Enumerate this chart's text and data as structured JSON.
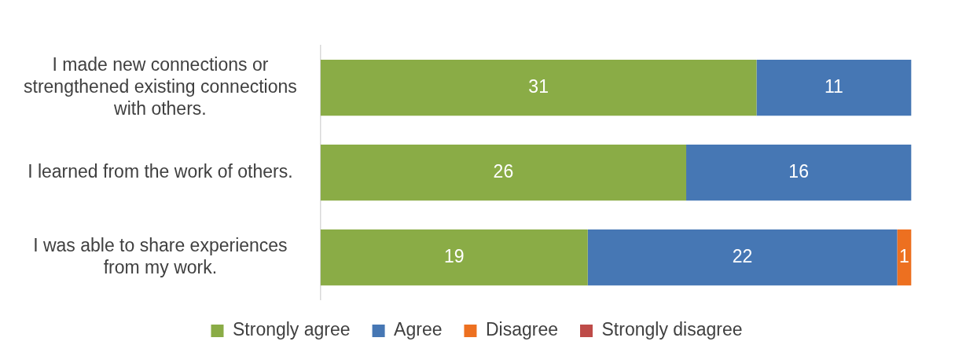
{
  "chart_data": {
    "type": "bar",
    "orientation": "horizontal",
    "stacked": true,
    "tick_labels": "y",
    "legend": "bottom",
    "categories": [
      "I made new connections or strengthened existing connections with others.",
      "I learned from the work of others.",
      "I was able to share experiences from my work."
    ],
    "series": [
      {
        "name": "Strongly agree",
        "color": "#8aac46",
        "values": [
          31,
          26,
          19
        ],
        "value_labels": [
          "31",
          "26",
          "19"
        ]
      },
      {
        "name": "Agree",
        "color": "#4677b4",
        "values": [
          11,
          16,
          22
        ],
        "value_labels": [
          "11",
          "16",
          "22"
        ]
      },
      {
        "name": "Disagree",
        "color": "#ed7020",
        "values": [
          0,
          0,
          1
        ],
        "value_labels": [
          null,
          null,
          "1"
        ]
      },
      {
        "name": "Strongly disagree",
        "color": "#be4b48",
        "values": [
          0,
          0,
          0
        ],
        "value_labels": [
          null,
          null,
          null
        ]
      }
    ]
  }
}
